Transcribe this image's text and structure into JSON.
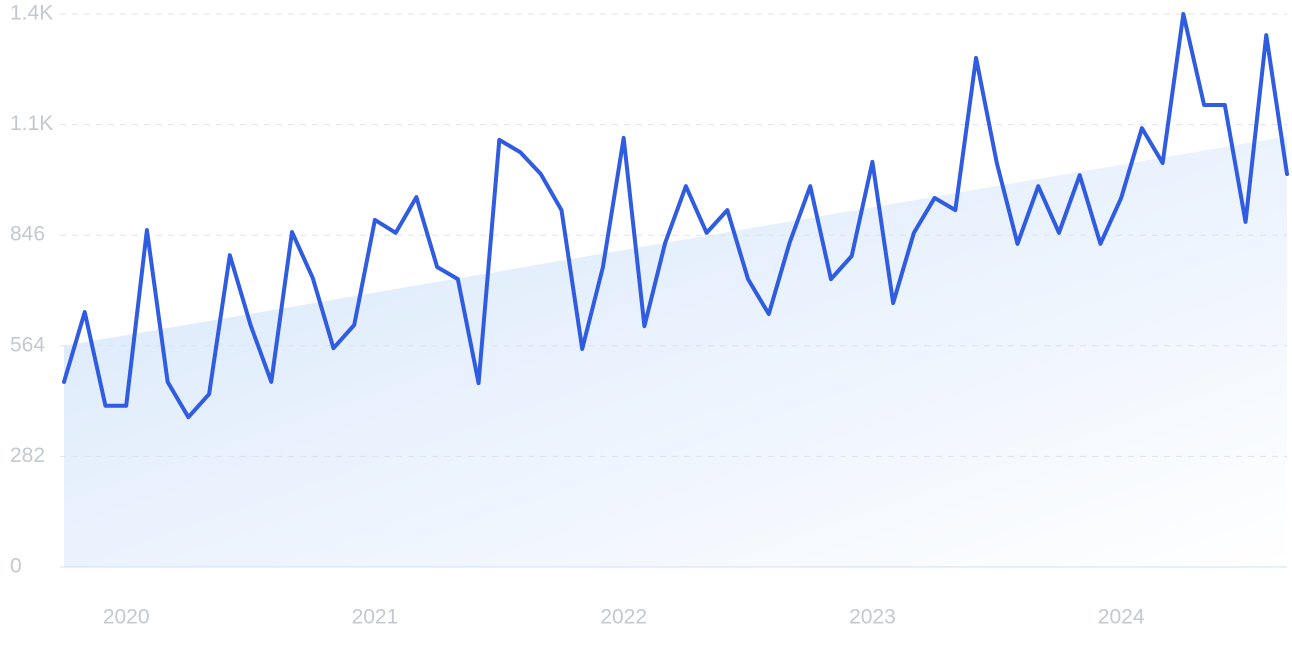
{
  "chart_data": {
    "type": "line",
    "categories": [
      null,
      null,
      null,
      "2020",
      null,
      null,
      null,
      null,
      null,
      null,
      null,
      null,
      null,
      null,
      null,
      "2021",
      null,
      null,
      null,
      null,
      null,
      null,
      null,
      null,
      null,
      null,
      null,
      "2022",
      null,
      null,
      null,
      null,
      null,
      null,
      null,
      null,
      null,
      null,
      null,
      "2023",
      null,
      null,
      null,
      null,
      null,
      null,
      null,
      null,
      null,
      null,
      null,
      "2024",
      null,
      null,
      null,
      null,
      null,
      null,
      null,
      null
    ],
    "values": [
      472,
      650,
      411,
      411,
      859,
      472,
      382,
      441,
      795,
      617,
      472,
      854,
      737,
      558,
      617,
      885,
      852,
      943,
      765,
      734,
      469,
      1089,
      1058,
      1002,
      910,
      556,
      765,
      1094,
      614,
      826,
      971,
      852,
      910,
      734,
      645,
      826,
      971,
      734,
      793,
      1033,
      673,
      852,
      941,
      910,
      1298,
      1030,
      824,
      971,
      852,
      999,
      824,
      941,
      1119,
      1030,
      1410,
      1178,
      1178,
      880,
      1356,
      1002
    ],
    "trend_values": [
      564,
      1098
    ],
    "color": "#2f5ce0",
    "ylim": [
      0,
      1410
    ],
    "yticks": [
      0,
      282,
      564,
      846,
      {
        "value": 1128,
        "label": "1.1K"
      },
      {
        "value": 1410,
        "label": "1.4K"
      }
    ],
    "grid": true
  }
}
